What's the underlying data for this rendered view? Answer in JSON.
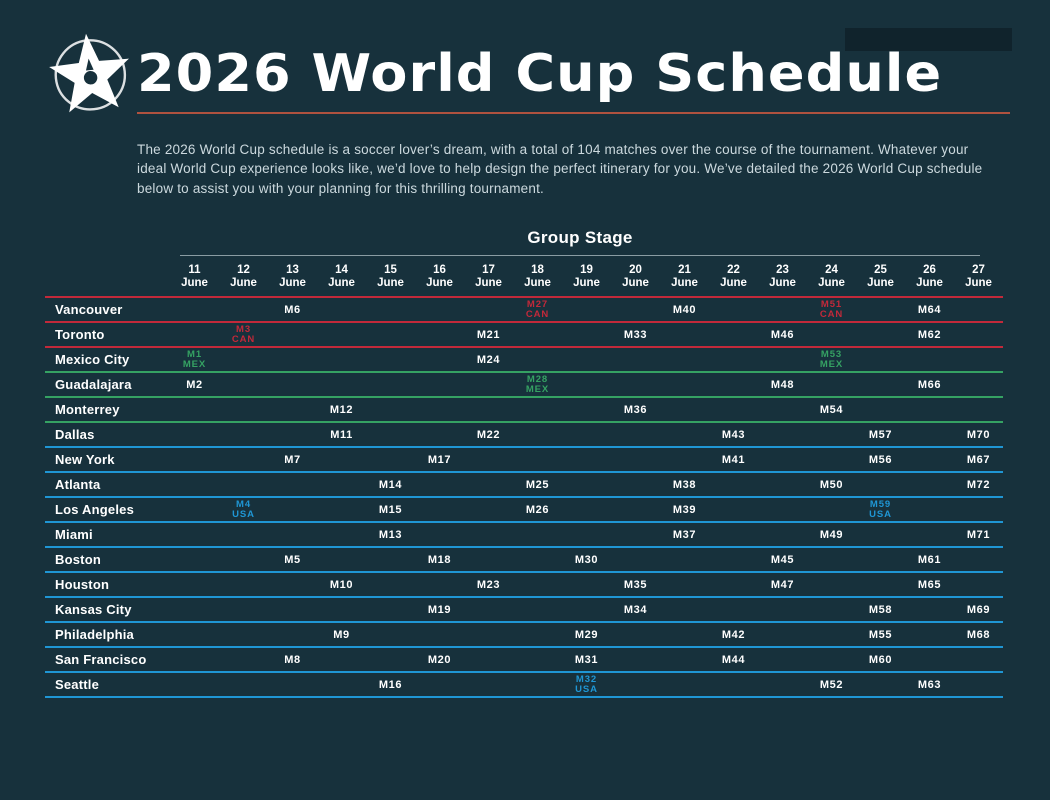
{
  "header": {
    "title": "2026 World Cup Schedule"
  },
  "intro": {
    "text": "The 2026 World Cup schedule is a soccer lover’s dream, with a total of 104 matches over the course of the tournament. Whatever your ideal World Cup experience looks like, we’d love to help design the perfect itinerary for you. We’ve detailed the 2026 World Cup schedule below to assist you with your planning for this thrilling tournament."
  },
  "colors": {
    "background": "#17313c",
    "can": "#c2293a",
    "mex": "#35a263",
    "usa": "#1f96d4",
    "title_rule": "#b0523f",
    "group_stage_rule": "rgba(233,244,248,0.55)"
  },
  "table": {
    "section_title": "Group Stage",
    "month": "June",
    "days": [
      11,
      12,
      13,
      14,
      15,
      16,
      17,
      18,
      19,
      20,
      21,
      22,
      23,
      24,
      25,
      26,
      27
    ],
    "rows": [
      {
        "city": "Vancouver",
        "country": "can",
        "matches": [
          {
            "day": 13,
            "label": "M6"
          },
          {
            "day": 18,
            "label": "M27",
            "code": "CAN"
          },
          {
            "day": 21,
            "label": "M40"
          },
          {
            "day": 24,
            "label": "M51",
            "code": "CAN"
          },
          {
            "day": 26,
            "label": "M64"
          }
        ]
      },
      {
        "city": "Toronto",
        "country": "can",
        "matches": [
          {
            "day": 12,
            "label": "M3",
            "code": "CAN"
          },
          {
            "day": 17,
            "label": "M21"
          },
          {
            "day": 20,
            "label": "M33"
          },
          {
            "day": 23,
            "label": "M46"
          },
          {
            "day": 26,
            "label": "M62"
          }
        ]
      },
      {
        "city": "Mexico City",
        "country": "mex",
        "matches": [
          {
            "day": 11,
            "label": "M1",
            "code": "MEX"
          },
          {
            "day": 17,
            "label": "M24"
          },
          {
            "day": 24,
            "label": "M53",
            "code": "MEX"
          }
        ]
      },
      {
        "city": "Guadalajara",
        "country": "mex",
        "matches": [
          {
            "day": 11,
            "label": "M2"
          },
          {
            "day": 18,
            "label": "M28",
            "code": "MEX"
          },
          {
            "day": 23,
            "label": "M48"
          },
          {
            "day": 26,
            "label": "M66"
          }
        ]
      },
      {
        "city": "Monterrey",
        "country": "mex",
        "matches": [
          {
            "day": 14,
            "label": "M12"
          },
          {
            "day": 20,
            "label": "M36"
          },
          {
            "day": 24,
            "label": "M54"
          }
        ]
      },
      {
        "city": "Dallas",
        "country": "usa",
        "matches": [
          {
            "day": 14,
            "label": "M11"
          },
          {
            "day": 17,
            "label": "M22"
          },
          {
            "day": 22,
            "label": "M43"
          },
          {
            "day": 25,
            "label": "M57"
          },
          {
            "day": 27,
            "label": "M70"
          }
        ]
      },
      {
        "city": "New York",
        "country": "usa",
        "matches": [
          {
            "day": 13,
            "label": "M7"
          },
          {
            "day": 16,
            "label": "M17"
          },
          {
            "day": 22,
            "label": "M41"
          },
          {
            "day": 25,
            "label": "M56"
          },
          {
            "day": 27,
            "label": "M67"
          }
        ]
      },
      {
        "city": "Atlanta",
        "country": "usa",
        "matches": [
          {
            "day": 15,
            "label": "M14"
          },
          {
            "day": 18,
            "label": "M25"
          },
          {
            "day": 21,
            "label": "M38"
          },
          {
            "day": 24,
            "label": "M50"
          },
          {
            "day": 27,
            "label": "M72"
          }
        ]
      },
      {
        "city": "Los Angeles",
        "country": "usa",
        "matches": [
          {
            "day": 12,
            "label": "M4",
            "code": "USA"
          },
          {
            "day": 15,
            "label": "M15"
          },
          {
            "day": 18,
            "label": "M26"
          },
          {
            "day": 21,
            "label": "M39"
          },
          {
            "day": 25,
            "label": "M59",
            "code": "USA"
          }
        ]
      },
      {
        "city": "Miami",
        "country": "usa",
        "matches": [
          {
            "day": 15,
            "label": "M13"
          },
          {
            "day": 21,
            "label": "M37"
          },
          {
            "day": 24,
            "label": "M49"
          },
          {
            "day": 27,
            "label": "M71"
          }
        ]
      },
      {
        "city": "Boston",
        "country": "usa",
        "matches": [
          {
            "day": 13,
            "label": "M5"
          },
          {
            "day": 16,
            "label": "M18"
          },
          {
            "day": 19,
            "label": "M30"
          },
          {
            "day": 23,
            "label": "M45"
          },
          {
            "day": 26,
            "label": "M61"
          }
        ]
      },
      {
        "city": "Houston",
        "country": "usa",
        "matches": [
          {
            "day": 14,
            "label": "M10"
          },
          {
            "day": 17,
            "label": "M23"
          },
          {
            "day": 20,
            "label": "M35"
          },
          {
            "day": 23,
            "label": "M47"
          },
          {
            "day": 26,
            "label": "M65"
          }
        ]
      },
      {
        "city": "Kansas City",
        "country": "usa",
        "matches": [
          {
            "day": 16,
            "label": "M19"
          },
          {
            "day": 20,
            "label": "M34"
          },
          {
            "day": 25,
            "label": "M58"
          },
          {
            "day": 27,
            "label": "M69"
          }
        ]
      },
      {
        "city": "Philadelphia",
        "country": "usa",
        "matches": [
          {
            "day": 14,
            "label": "M9"
          },
          {
            "day": 19,
            "label": "M29"
          },
          {
            "day": 22,
            "label": "M42"
          },
          {
            "day": 25,
            "label": "M55"
          },
          {
            "day": 27,
            "label": "M68"
          }
        ]
      },
      {
        "city": "San Francisco",
        "country": "usa",
        "matches": [
          {
            "day": 13,
            "label": "M8"
          },
          {
            "day": 16,
            "label": "M20"
          },
          {
            "day": 19,
            "label": "M31"
          },
          {
            "day": 22,
            "label": "M44"
          },
          {
            "day": 25,
            "label": "M60"
          }
        ]
      },
      {
        "city": "Seattle",
        "country": "usa",
        "matches": [
          {
            "day": 15,
            "label": "M16"
          },
          {
            "day": 19,
            "label": "M32",
            "code": "USA"
          },
          {
            "day": 24,
            "label": "M52"
          },
          {
            "day": 26,
            "label": "M63"
          }
        ]
      }
    ]
  }
}
